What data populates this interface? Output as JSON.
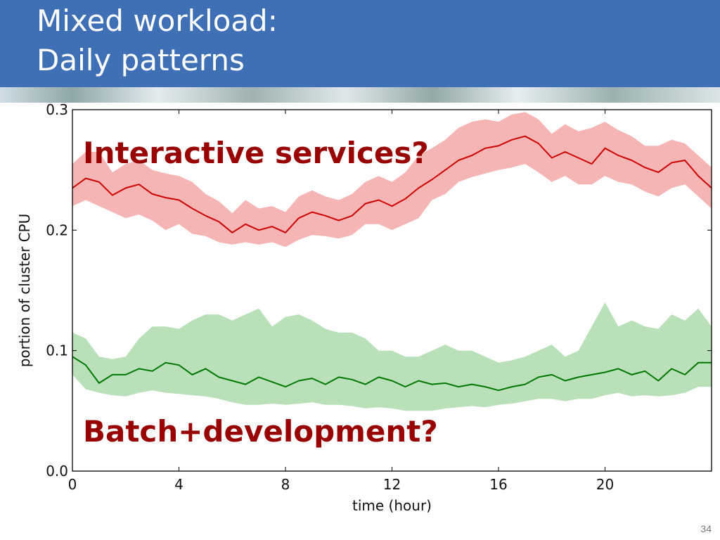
{
  "slide": {
    "title_line1": "Mixed workload:",
    "title_line2": "Daily patterns",
    "page_number": "34"
  },
  "colors": {
    "header": "#3f6fb5",
    "interactive_line": "#cc0000",
    "interactive_band": "#f4a3a3",
    "batch_line": "#007700",
    "batch_band": "#a9d8a9",
    "annotation": "#990000"
  },
  "chart_data": {
    "type": "line",
    "xlabel": "time (hour)",
    "ylabel": "portion of cluster CPU",
    "xlim": [
      0,
      24
    ],
    "ylim": [
      0,
      0.3
    ],
    "xticks": [
      0,
      4,
      8,
      12,
      16,
      20
    ],
    "yticks": [
      "0.0",
      "0.1",
      "0.2",
      "0.3"
    ],
    "grid": false,
    "annotations": [
      "Interactive services?",
      "Batch+development?"
    ],
    "series": [
      {
        "x": [
          0,
          0.5,
          1,
          1.5,
          2,
          2.5,
          3,
          3.5,
          4,
          4.5,
          5,
          5.5,
          6,
          6.5,
          7,
          7.5,
          8,
          8.5,
          9,
          9.5,
          10,
          10.5,
          11,
          11.5,
          12,
          12.5,
          13,
          13.5,
          14,
          14.5,
          15,
          15.5,
          16,
          16.5,
          17,
          17.5,
          18,
          18.5,
          19,
          19.5,
          20,
          20.5,
          21,
          21.5,
          22,
          22.5,
          23,
          23.5,
          24
        ],
        "values": [
          0.235,
          0.243,
          0.24,
          0.229,
          0.235,
          0.238,
          0.23,
          0.227,
          0.225,
          0.218,
          0.212,
          0.207,
          0.198,
          0.205,
          0.2,
          0.203,
          0.198,
          0.21,
          0.215,
          0.212,
          0.208,
          0.212,
          0.222,
          0.225,
          0.22,
          0.226,
          0.235,
          0.242,
          0.25,
          0.258,
          0.262,
          0.268,
          0.27,
          0.275,
          0.278,
          0.272,
          0.26,
          0.265,
          0.26,
          0.255,
          0.268,
          0.262,
          0.258,
          0.252,
          0.248,
          0.256,
          0.258,
          0.245,
          0.235
        ],
        "lower": [
          0.22,
          0.225,
          0.22,
          0.215,
          0.21,
          0.213,
          0.208,
          0.2,
          0.205,
          0.197,
          0.195,
          0.19,
          0.188,
          0.19,
          0.188,
          0.19,
          0.186,
          0.192,
          0.196,
          0.195,
          0.193,
          0.196,
          0.205,
          0.205,
          0.2,
          0.205,
          0.21,
          0.225,
          0.23,
          0.24,
          0.244,
          0.247,
          0.25,
          0.252,
          0.255,
          0.248,
          0.24,
          0.245,
          0.238,
          0.238,
          0.245,
          0.24,
          0.238,
          0.232,
          0.228,
          0.235,
          0.238,
          0.228,
          0.218
        ],
        "upper": [
          0.255,
          0.265,
          0.265,
          0.248,
          0.255,
          0.258,
          0.25,
          0.247,
          0.245,
          0.24,
          0.23,
          0.224,
          0.214,
          0.225,
          0.218,
          0.22,
          0.215,
          0.228,
          0.233,
          0.228,
          0.225,
          0.23,
          0.24,
          0.245,
          0.24,
          0.248,
          0.262,
          0.268,
          0.275,
          0.285,
          0.29,
          0.292,
          0.29,
          0.296,
          0.298,
          0.292,
          0.28,
          0.288,
          0.282,
          0.285,
          0.29,
          0.283,
          0.278,
          0.27,
          0.27,
          0.275,
          0.272,
          0.262,
          0.252
        ]
      },
      {
        "x": [
          0,
          0.5,
          1,
          1.5,
          2,
          2.5,
          3,
          3.5,
          4,
          4.5,
          5,
          5.5,
          6,
          6.5,
          7,
          7.5,
          8,
          8.5,
          9,
          9.5,
          10,
          10.5,
          11,
          11.5,
          12,
          12.5,
          13,
          13.5,
          14,
          14.5,
          15,
          15.5,
          16,
          16.5,
          17,
          17.5,
          18,
          18.5,
          19,
          19.5,
          20,
          20.5,
          21,
          21.5,
          22,
          22.5,
          23,
          23.5,
          24
        ],
        "values": [
          0.095,
          0.088,
          0.073,
          0.08,
          0.08,
          0.085,
          0.083,
          0.09,
          0.088,
          0.08,
          0.085,
          0.078,
          0.075,
          0.072,
          0.078,
          0.074,
          0.07,
          0.075,
          0.077,
          0.072,
          0.078,
          0.076,
          0.072,
          0.078,
          0.075,
          0.07,
          0.075,
          0.072,
          0.073,
          0.07,
          0.072,
          0.07,
          0.067,
          0.07,
          0.072,
          0.078,
          0.08,
          0.075,
          0.078,
          0.08,
          0.082,
          0.085,
          0.08,
          0.083,
          0.075,
          0.085,
          0.08,
          0.09,
          0.09
        ],
        "lower": [
          0.08,
          0.068,
          0.065,
          0.063,
          0.062,
          0.065,
          0.067,
          0.065,
          0.064,
          0.063,
          0.062,
          0.06,
          0.057,
          0.055,
          0.055,
          0.056,
          0.055,
          0.056,
          0.057,
          0.055,
          0.055,
          0.054,
          0.052,
          0.053,
          0.052,
          0.05,
          0.05,
          0.05,
          0.052,
          0.053,
          0.054,
          0.053,
          0.055,
          0.056,
          0.058,
          0.06,
          0.06,
          0.058,
          0.06,
          0.06,
          0.063,
          0.065,
          0.062,
          0.063,
          0.062,
          0.063,
          0.065,
          0.07,
          0.07
        ],
        "upper": [
          0.115,
          0.11,
          0.095,
          0.093,
          0.095,
          0.11,
          0.12,
          0.12,
          0.118,
          0.125,
          0.13,
          0.13,
          0.125,
          0.13,
          0.135,
          0.12,
          0.128,
          0.13,
          0.125,
          0.118,
          0.115,
          0.115,
          0.11,
          0.1,
          0.1,
          0.095,
          0.095,
          0.1,
          0.105,
          0.1,
          0.1,
          0.095,
          0.09,
          0.092,
          0.095,
          0.1,
          0.105,
          0.095,
          0.1,
          0.12,
          0.14,
          0.12,
          0.125,
          0.12,
          0.118,
          0.13,
          0.125,
          0.135,
          0.12
        ]
      }
    ]
  }
}
